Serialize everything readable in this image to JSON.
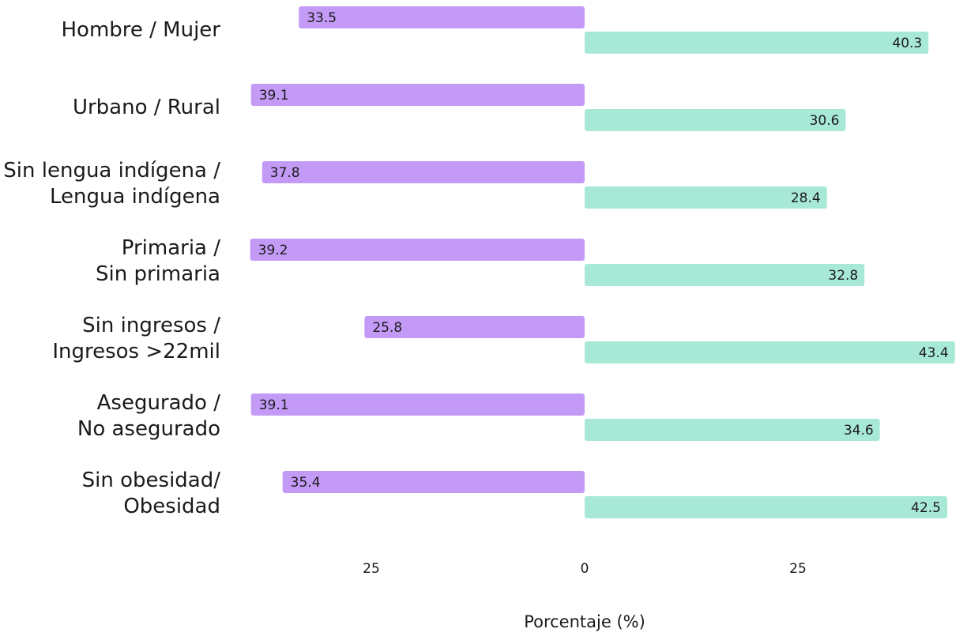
{
  "chart_data": {
    "type": "bar",
    "orientation": "horizontal-diverging",
    "categories": [
      [
        "Hombre / Mujer"
      ],
      [
        "Urbano / Rural"
      ],
      [
        "Sin lengua indígena /",
        "Lengua indígena"
      ],
      [
        "Primaria /",
        "Sin primaria"
      ],
      [
        "Sin ingresos  /",
        "Ingresos >22mil"
      ],
      [
        "Asegurado /",
        "No asegurado"
      ],
      [
        "Sin obesidad/",
        "Obesidad"
      ]
    ],
    "series": [
      {
        "side": "left",
        "color": "#c39bf7",
        "values": [
          33.5,
          39.1,
          37.8,
          39.2,
          25.8,
          39.1,
          35.4
        ]
      },
      {
        "side": "right",
        "color": "#a8e8d6",
        "values": [
          40.3,
          30.6,
          28.4,
          32.8,
          43.4,
          34.6,
          42.5
        ]
      }
    ],
    "x_ticks": [
      {
        "value": -25,
        "label": "25"
      },
      {
        "value": 0,
        "label": "0"
      },
      {
        "value": 25,
        "label": "25"
      }
    ],
    "xlabel": "Porcentaje (%)",
    "xlim": [
      -40,
      44
    ],
    "grid": false,
    "legend": "none"
  }
}
